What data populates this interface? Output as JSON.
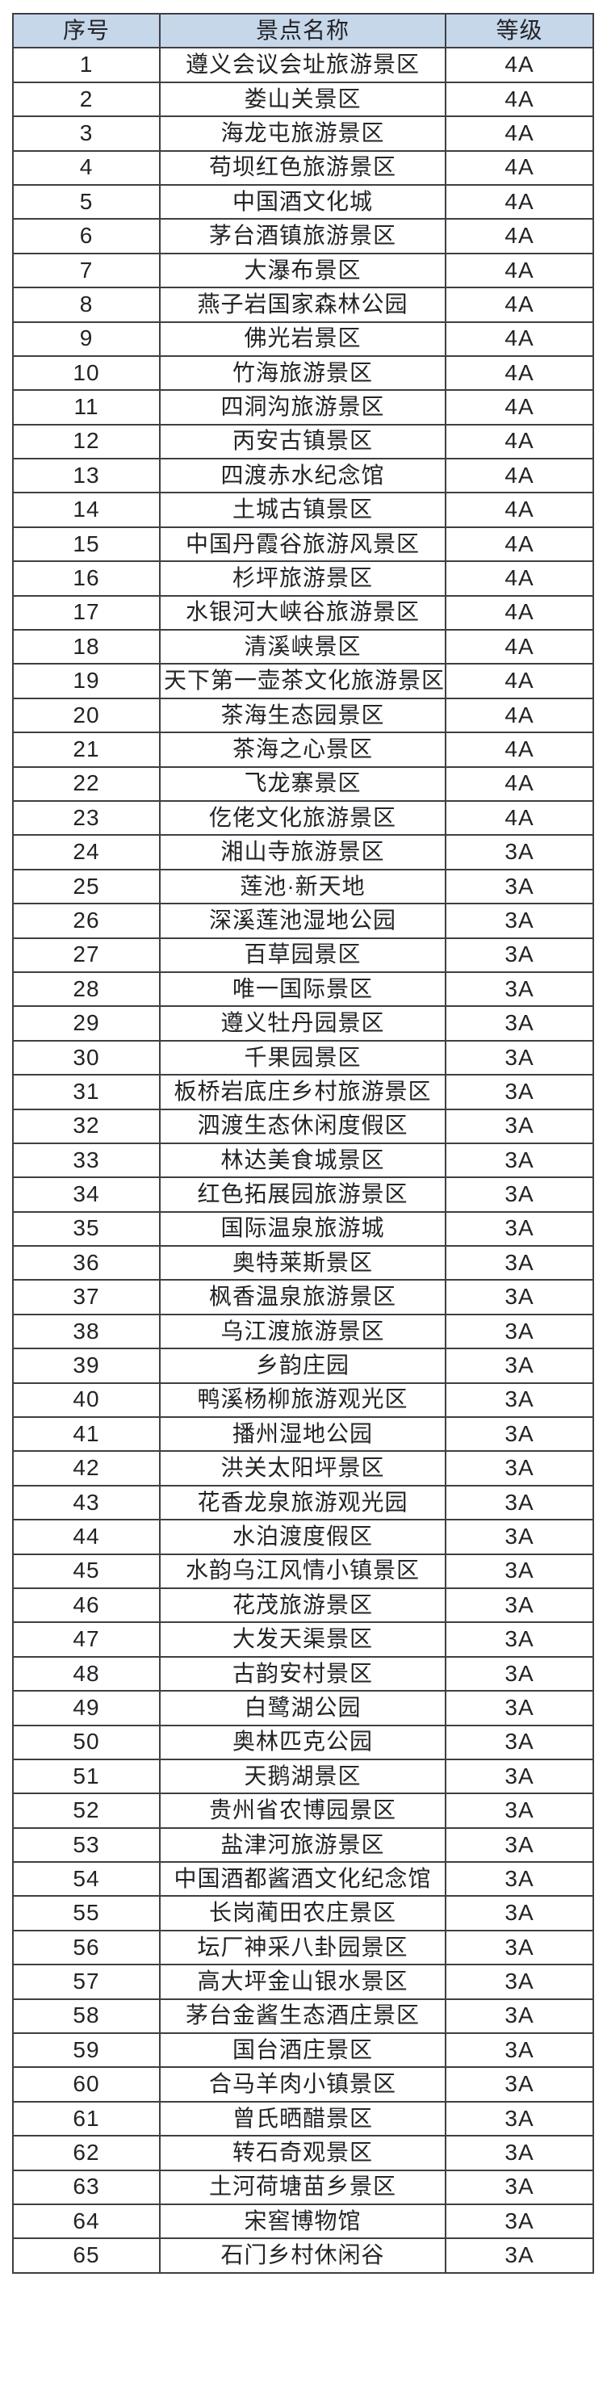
{
  "table": {
    "headers": [
      "序号",
      "景点名称",
      "等级"
    ],
    "rows": [
      {
        "no": "1",
        "name": "遵义会议会址旅游景区",
        "grade": "4A"
      },
      {
        "no": "2",
        "name": "娄山关景区",
        "grade": "4A"
      },
      {
        "no": "3",
        "name": "海龙屯旅游景区",
        "grade": "4A"
      },
      {
        "no": "4",
        "name": "苟坝红色旅游景区",
        "grade": "4A"
      },
      {
        "no": "5",
        "name": "中国酒文化城",
        "grade": "4A"
      },
      {
        "no": "6",
        "name": "茅台酒镇旅游景区",
        "grade": "4A"
      },
      {
        "no": "7",
        "name": "大瀑布景区",
        "grade": "4A"
      },
      {
        "no": "8",
        "name": "燕子岩国家森林公园",
        "grade": "4A"
      },
      {
        "no": "9",
        "name": "佛光岩景区",
        "grade": "4A"
      },
      {
        "no": "10",
        "name": "竹海旅游景区",
        "grade": "4A"
      },
      {
        "no": "11",
        "name": "四洞沟旅游景区",
        "grade": "4A"
      },
      {
        "no": "12",
        "name": "丙安古镇景区",
        "grade": "4A"
      },
      {
        "no": "13",
        "name": "四渡赤水纪念馆",
        "grade": "4A"
      },
      {
        "no": "14",
        "name": "土城古镇景区",
        "grade": "4A"
      },
      {
        "no": "15",
        "name": "中国丹霞谷旅游风景区",
        "grade": "4A"
      },
      {
        "no": "16",
        "name": "杉坪旅游景区",
        "grade": "4A"
      },
      {
        "no": "17",
        "name": "水银河大峡谷旅游景区",
        "grade": "4A"
      },
      {
        "no": "18",
        "name": "清溪峡景区",
        "grade": "4A"
      },
      {
        "no": "19",
        "name": "天下第一壶茶文化旅游景区",
        "grade": "4A"
      },
      {
        "no": "20",
        "name": "茶海生态园景区",
        "grade": "4A"
      },
      {
        "no": "21",
        "name": "茶海之心景区",
        "grade": "4A"
      },
      {
        "no": "22",
        "name": "飞龙寨景区",
        "grade": "4A"
      },
      {
        "no": "23",
        "name": "仡佬文化旅游景区",
        "grade": "4A"
      },
      {
        "no": "24",
        "name": "湘山寺旅游景区",
        "grade": "3A"
      },
      {
        "no": "25",
        "name": "莲池·新天地",
        "grade": "3A"
      },
      {
        "no": "26",
        "name": "深溪莲池湿地公园",
        "grade": "3A"
      },
      {
        "no": "27",
        "name": "百草园景区",
        "grade": "3A"
      },
      {
        "no": "28",
        "name": "唯一国际景区",
        "grade": "3A"
      },
      {
        "no": "29",
        "name": "遵义牡丹园景区",
        "grade": "3A"
      },
      {
        "no": "30",
        "name": "千果园景区",
        "grade": "3A"
      },
      {
        "no": "31",
        "name": "板桥岩底庄乡村旅游景区",
        "grade": "3A"
      },
      {
        "no": "32",
        "name": "泗渡生态休闲度假区",
        "grade": "3A"
      },
      {
        "no": "33",
        "name": "林达美食城景区",
        "grade": "3A"
      },
      {
        "no": "34",
        "name": "红色拓展园旅游景区",
        "grade": "3A"
      },
      {
        "no": "35",
        "name": "国际温泉旅游城",
        "grade": "3A"
      },
      {
        "no": "36",
        "name": "奥特莱斯景区",
        "grade": "3A"
      },
      {
        "no": "37",
        "name": "枫香温泉旅游景区",
        "grade": "3A"
      },
      {
        "no": "38",
        "name": "乌江渡旅游景区",
        "grade": "3A"
      },
      {
        "no": "39",
        "name": "乡韵庄园",
        "grade": "3A"
      },
      {
        "no": "40",
        "name": "鸭溪杨柳旅游观光区",
        "grade": "3A"
      },
      {
        "no": "41",
        "name": "播州湿地公园",
        "grade": "3A"
      },
      {
        "no": "42",
        "name": "洪关太阳坪景区",
        "grade": "3A"
      },
      {
        "no": "43",
        "name": "花香龙泉旅游观光园",
        "grade": "3A"
      },
      {
        "no": "44",
        "name": "水泊渡度假区",
        "grade": "3A"
      },
      {
        "no": "45",
        "name": "水韵乌江风情小镇景区",
        "grade": "3A"
      },
      {
        "no": "46",
        "name": "花茂旅游景区",
        "grade": "3A"
      },
      {
        "no": "47",
        "name": "大发天渠景区",
        "grade": "3A"
      },
      {
        "no": "48",
        "name": "古韵安村景区",
        "grade": "3A"
      },
      {
        "no": "49",
        "name": "白鹭湖公园",
        "grade": "3A"
      },
      {
        "no": "50",
        "name": "奥林匹克公园",
        "grade": "3A"
      },
      {
        "no": "51",
        "name": "天鹅湖景区",
        "grade": "3A"
      },
      {
        "no": "52",
        "name": "贵州省农博园景区",
        "grade": "3A"
      },
      {
        "no": "53",
        "name": "盐津河旅游景区",
        "grade": "3A"
      },
      {
        "no": "54",
        "name": "中国酒都酱酒文化纪念馆",
        "grade": "3A"
      },
      {
        "no": "55",
        "name": "长岗蔺田农庄景区",
        "grade": "3A"
      },
      {
        "no": "56",
        "name": "坛厂神采八卦园景区",
        "grade": "3A"
      },
      {
        "no": "57",
        "name": "高大坪金山银水景区",
        "grade": "3A"
      },
      {
        "no": "58",
        "name": "茅台金酱生态酒庄景区",
        "grade": "3A"
      },
      {
        "no": "59",
        "name": "国台酒庄景区",
        "grade": "3A"
      },
      {
        "no": "60",
        "name": "合马羊肉小镇景区",
        "grade": "3A"
      },
      {
        "no": "61",
        "name": "曾氏晒醋景区",
        "grade": "3A"
      },
      {
        "no": "62",
        "name": "转石奇观景区",
        "grade": "3A"
      },
      {
        "no": "63",
        "name": "土河荷塘苗乡景区",
        "grade": "3A"
      },
      {
        "no": "64",
        "name": "宋窖博物馆",
        "grade": "3A"
      },
      {
        "no": "65",
        "name": "石门乡村休闲谷",
        "grade": "3A"
      }
    ]
  },
  "colors": {
    "header_bg": "#c6d7ea",
    "border": "#3d3f44",
    "text": "#222326",
    "page_bg": "#ffffff"
  }
}
